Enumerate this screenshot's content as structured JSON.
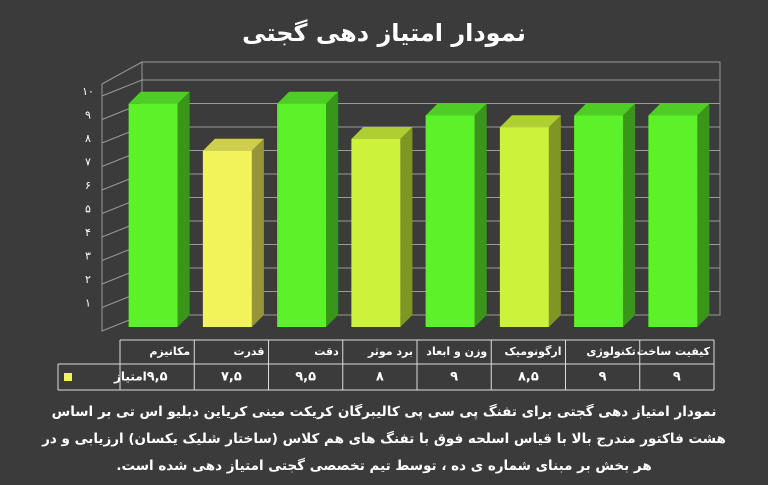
{
  "chart_data": {
    "type": "bar",
    "title": "نمودار امتیاز دهی گجتی",
    "categories": [
      "مکانیزم",
      "قدرت",
      "دقت",
      "برد موثر",
      "وزن و ابعاد",
      "ارگونومیک",
      "تکنولوژی",
      "کیفیت ساخت"
    ],
    "series": [
      {
        "name": "امتیاز",
        "color": "#f2f25a",
        "values": [
          9.5,
          7.5,
          9.5,
          8,
          9,
          8.5,
          9,
          9
        ],
        "value_labels": [
          "۹,۵",
          "۷,۵",
          "۹,۵",
          "۸",
          "۹",
          "۸,۵",
          "۹",
          "۹"
        ],
        "colors": [
          "#5cf22a",
          "#f2f25a",
          "#5cf22a",
          "#cdf23a",
          "#5cf22a",
          "#cdf23a",
          "#5cf22a",
          "#5cf22a"
        ]
      }
    ],
    "ylim": [
      0,
      10
    ],
    "yticks": [
      {
        "value": 1,
        "label": "۱"
      },
      {
        "value": 2,
        "label": "۲"
      },
      {
        "value": 3,
        "label": "۳"
      },
      {
        "value": 4,
        "label": "۴"
      },
      {
        "value": 5,
        "label": "۵"
      },
      {
        "value": 6,
        "label": "۶"
      },
      {
        "value": 7,
        "label": "۷"
      },
      {
        "value": 8,
        "label": "۸"
      },
      {
        "value": 9,
        "label": "۹"
      },
      {
        "value": 10,
        "label": "۱۰"
      }
    ],
    "grid": true,
    "description": [
      "نمودار امتیاز دهی گجتی برای تفنگ پی سی پی کالیبرگان کریکت مینی کریاین دبلیو اس تی بر اساس",
      "هشت فاکتور مندرج بالا با قیاس اسلحه فوق با تفنگ های هم کلاس (ساختار شلیک یکسان) ارزیابی و در",
      "هر بخش بر مبنای شماره ی ده ، توسط تیم تخصصی گجتی امتیاز دهی شده است."
    ]
  }
}
